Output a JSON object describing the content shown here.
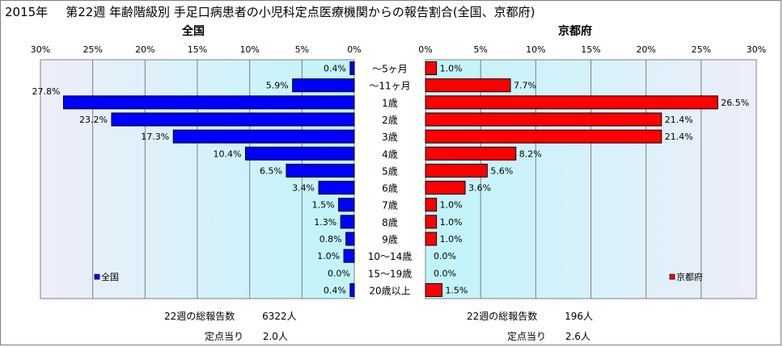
{
  "header": {
    "year": "2015年",
    "title": "第22週 年齢階級別 手足口病患者の小児科定点医療機関からの報告割合(全国、京都府)"
  },
  "age_groups": [
    "～5ヶ月",
    "～11ヶ月",
    "1歳",
    "2歳",
    "3歳",
    "4歳",
    "5歳",
    "6歳",
    "7歳",
    "8歳",
    "9歳",
    "10～14歳",
    "15～19歳",
    "20歳以上"
  ],
  "chart_data": [
    {
      "type": "bar",
      "title": "全国",
      "orientation": "horizontal",
      "x_direction": "reversed",
      "categories": [
        "～5ヶ月",
        "～11ヶ月",
        "1歳",
        "2歳",
        "3歳",
        "4歳",
        "5歳",
        "6歳",
        "7歳",
        "8歳",
        "9歳",
        "10～14歳",
        "15～19歳",
        "20歳以上"
      ],
      "series": [
        {
          "name": "全国",
          "color": "#0000ff",
          "values": [
            0.4,
            5.9,
            27.8,
            23.2,
            17.3,
            10.4,
            6.5,
            3.4,
            1.5,
            1.3,
            0.8,
            1.0,
            0.0,
            0.4
          ],
          "labels": [
            "0.4%",
            "5.9%",
            "27.8%",
            "23.2%",
            "17.3%",
            "10.4%",
            "6.5%",
            "3.4%",
            "1.5%",
            "1.3%",
            "0.8%",
            "1.0%",
            "0.0%",
            "0.4%"
          ]
        }
      ],
      "xlim": [
        0,
        30
      ],
      "ticks": [
        "0%",
        "5%",
        "10%",
        "15%",
        "20%",
        "25%",
        "30%"
      ],
      "legend": "bottom-left",
      "grid": true
    },
    {
      "type": "bar",
      "title": "京都府",
      "orientation": "horizontal",
      "categories": [
        "～5ヶ月",
        "～11ヶ月",
        "1歳",
        "2歳",
        "3歳",
        "4歳",
        "5歳",
        "6歳",
        "7歳",
        "8歳",
        "9歳",
        "10～14歳",
        "15～19歳",
        "20歳以上"
      ],
      "series": [
        {
          "name": "京都府",
          "color": "#ff0000",
          "values": [
            1.0,
            7.7,
            26.5,
            21.4,
            21.4,
            8.2,
            5.6,
            3.6,
            1.0,
            1.0,
            1.0,
            0.0,
            0.0,
            1.5
          ],
          "labels": [
            "1.0%",
            "7.7%",
            "26.5%",
            "21.4%",
            "21.4%",
            "8.2%",
            "5.6%",
            "3.6%",
            "1.0%",
            "1.0%",
            "1.0%",
            "0.0%",
            "0.0%",
            "1.5%"
          ]
        }
      ],
      "xlim": [
        0,
        30
      ],
      "ticks": [
        "0%",
        "5%",
        "10%",
        "15%",
        "20%",
        "25%",
        "30%"
      ],
      "legend": "bottom-right",
      "grid": true
    }
  ],
  "footer": {
    "national": {
      "total_label": "22週の総報告数",
      "total_value": "6322人",
      "per_label": "定点当り",
      "per_value": "2.0人"
    },
    "kyoto": {
      "total_label": "22週の総報告数",
      "total_value": "196人",
      "per_label": "定点当り",
      "per_value": "2.6人"
    }
  }
}
